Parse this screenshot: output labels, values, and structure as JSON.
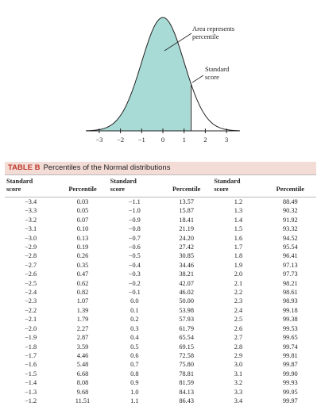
{
  "figure": {
    "annotations": [
      {
        "lines": [
          "Area represents",
          "percentile"
        ]
      },
      {
        "lines": [
          "Standard",
          "score"
        ]
      }
    ],
    "axis_labels": [
      "−3",
      "−2",
      "−1",
      "0",
      "1",
      "2",
      "3"
    ]
  },
  "table": {
    "label": "TABLE B",
    "title": "Percentiles of the Normal distributions",
    "header": [
      [
        "Standard",
        "score"
      ],
      [
        "Percentile"
      ],
      [
        "Standard",
        "score"
      ],
      [
        "Percentile"
      ],
      [
        "Standard",
        "score"
      ],
      [
        "Percentile"
      ]
    ],
    "rows": [
      [
        "−3.4",
        "0.03",
        "−1.1",
        "13.57",
        "1.2",
        "88.49"
      ],
      [
        "−3.3",
        "0.05",
        "−1.0",
        "15.87",
        "1.3",
        "90.32"
      ],
      [
        "−3.2",
        "0.07",
        "−0.9",
        "18.41",
        "1.4",
        "91.92"
      ],
      [
        "−3.1",
        "0.10",
        "−0.8",
        "21.19",
        "1.5",
        "93.32"
      ],
      [
        "−3.0",
        "0.13",
        "−0.7",
        "24.20",
        "1.6",
        "94.52"
      ],
      [
        "−2.9",
        "0.19",
        "−0.6",
        "27.42",
        "1.7",
        "95.54"
      ],
      [
        "−2.8",
        "0.26",
        "−0.5",
        "30.85",
        "1.8",
        "96.41"
      ],
      [
        "−2.7",
        "0.35",
        "−0.4",
        "34.46",
        "1.9",
        "97.13"
      ],
      [
        "−2.6",
        "0.47",
        "−0.3",
        "38.21",
        "2.0",
        "97.73"
      ],
      [
        "−2.5",
        "0.62",
        "−0.2",
        "42.07",
        "2.1",
        "98.21"
      ],
      [
        "−2.4",
        "0.82",
        "−0.1",
        "46.02",
        "2.2",
        "98.61"
      ],
      [
        "−2.3",
        "1.07",
        "0.0",
        "50.00",
        "2.3",
        "98.93"
      ],
      [
        "−2.2",
        "1.39",
        "0.1",
        "53.98",
        "2.4",
        "99.18"
      ],
      [
        "−2.1",
        "1.79",
        "0.2",
        "57.93",
        "2.5",
        "99.38"
      ],
      [
        "−2.0",
        "2.27",
        "0.3",
        "61.79",
        "2.6",
        "99.53"
      ],
      [
        "−1.9",
        "2.87",
        "0.4",
        "65.54",
        "2.7",
        "99.65"
      ],
      [
        "−1.8",
        "3.59",
        "0.5",
        "69.15",
        "2.8",
        "99.74"
      ],
      [
        "−1.7",
        "4.46",
        "0.6",
        "72.58",
        "2.9",
        "99.81"
      ],
      [
        "−1.6",
        "5.48",
        "0.7",
        "75.80",
        "3.0",
        "99.87"
      ],
      [
        "−1.5",
        "6.68",
        "0.8",
        "78.81",
        "3.1",
        "99.90"
      ],
      [
        "−1.4",
        "8.08",
        "0.9",
        "81.59",
        "3.2",
        "99.93"
      ],
      [
        "−1.3",
        "9.68",
        "1.0",
        "84.13",
        "3.3",
        "99.95"
      ],
      [
        "−1.2",
        "11.51",
        "1.1",
        "86.43",
        "3.4",
        "99.97"
      ]
    ]
  }
}
